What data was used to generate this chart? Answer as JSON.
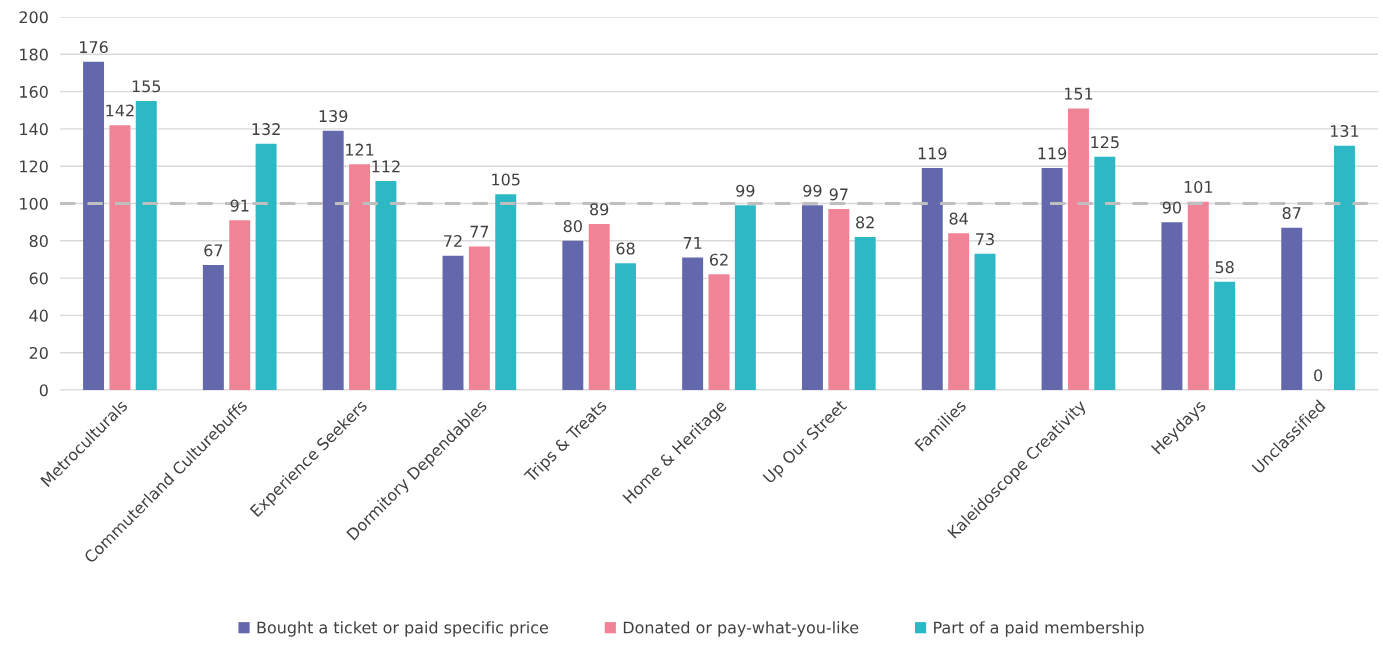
{
  "chart_data": {
    "type": "bar",
    "categories": [
      "Metroculturals",
      "Commuterland Culturebuffs",
      "Experience Seekers",
      "Dormitory Dependables",
      "Trips & Treats",
      "Home & Heritage",
      "Up Our Street",
      "Families",
      "Kaleidoscope Creativity",
      "Heydays",
      "Unclassified"
    ],
    "series": [
      {
        "name": "Bought a ticket or paid specific price",
        "color": "#6368ac",
        "values": [
          176,
          67,
          139,
          72,
          80,
          71,
          99,
          119,
          119,
          90,
          87
        ]
      },
      {
        "name": "Donated or pay-what-you-like",
        "color": "#f08396",
        "values": [
          142,
          91,
          121,
          77,
          89,
          62,
          97,
          84,
          151,
          101,
          0
        ]
      },
      {
        "name": "Part of a paid membership",
        "color": "#2cb8c4",
        "values": [
          155,
          132,
          112,
          105,
          68,
          99,
          82,
          73,
          125,
          58,
          131
        ]
      }
    ],
    "ylim": [
      0,
      200
    ],
    "yticks": [
      0,
      20,
      40,
      60,
      80,
      100,
      120,
      140,
      160,
      180,
      200
    ],
    "grid": "y",
    "legend": "bottom",
    "data_labels": true,
    "ref_lines": [
      {
        "axis": "y",
        "value": 100,
        "color": "#bfbfbf",
        "line_style": "dashed"
      }
    ]
  }
}
